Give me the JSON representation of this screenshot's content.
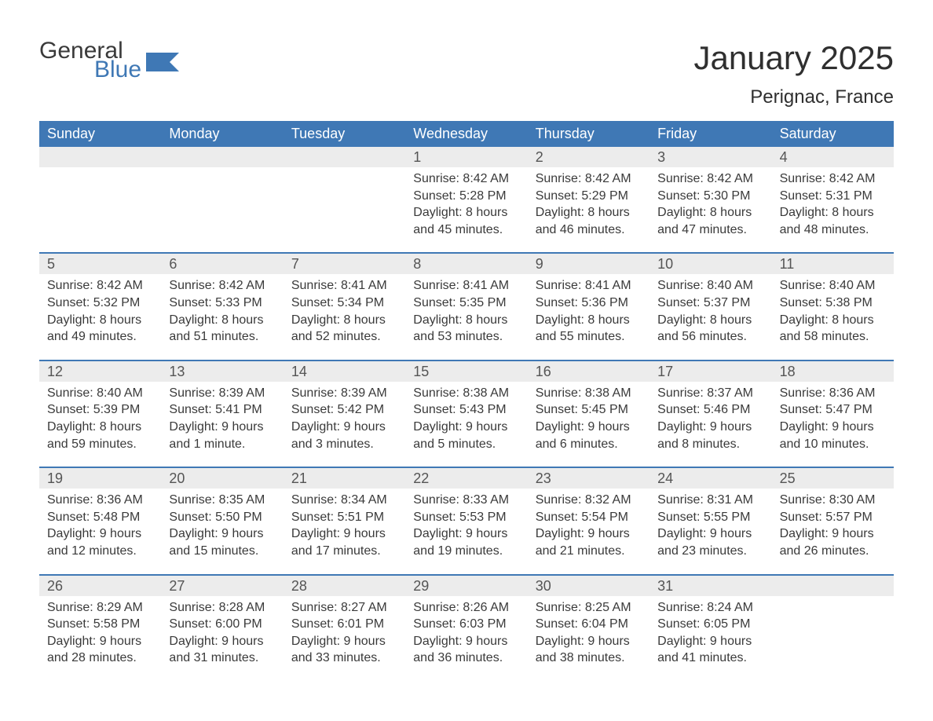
{
  "colors": {
    "brand_blue": "#3f78b5",
    "text_dark": "#3a3a3a",
    "header_bg": "#3f78b5",
    "header_text": "#ffffff",
    "daynum_bg": "#ececec",
    "page_bg": "#ffffff",
    "week_border": "#3f78b5"
  },
  "typography": {
    "month_title_fontsize": 42,
    "location_fontsize": 24,
    "weekday_fontsize": 18,
    "daynum_fontsize": 18,
    "cell_fontsize": 16,
    "logo_fontsize": 30
  },
  "logo": {
    "word1": "General",
    "word2": "Blue"
  },
  "header": {
    "month_title": "January 2025",
    "location": "Perignac, France"
  },
  "weekdays": [
    "Sunday",
    "Monday",
    "Tuesday",
    "Wednesday",
    "Thursday",
    "Friday",
    "Saturday"
  ],
  "weeks": [
    {
      "days": [
        {
          "n": "",
          "sunrise": "",
          "sunset": "",
          "daylight1": "",
          "daylight2": ""
        },
        {
          "n": "",
          "sunrise": "",
          "sunset": "",
          "daylight1": "",
          "daylight2": ""
        },
        {
          "n": "",
          "sunrise": "",
          "sunset": "",
          "daylight1": "",
          "daylight2": ""
        },
        {
          "n": "1",
          "sunrise": "Sunrise: 8:42 AM",
          "sunset": "Sunset: 5:28 PM",
          "daylight1": "Daylight: 8 hours",
          "daylight2": "and 45 minutes."
        },
        {
          "n": "2",
          "sunrise": "Sunrise: 8:42 AM",
          "sunset": "Sunset: 5:29 PM",
          "daylight1": "Daylight: 8 hours",
          "daylight2": "and 46 minutes."
        },
        {
          "n": "3",
          "sunrise": "Sunrise: 8:42 AM",
          "sunset": "Sunset: 5:30 PM",
          "daylight1": "Daylight: 8 hours",
          "daylight2": "and 47 minutes."
        },
        {
          "n": "4",
          "sunrise": "Sunrise: 8:42 AM",
          "sunset": "Sunset: 5:31 PM",
          "daylight1": "Daylight: 8 hours",
          "daylight2": "and 48 minutes."
        }
      ]
    },
    {
      "days": [
        {
          "n": "5",
          "sunrise": "Sunrise: 8:42 AM",
          "sunset": "Sunset: 5:32 PM",
          "daylight1": "Daylight: 8 hours",
          "daylight2": "and 49 minutes."
        },
        {
          "n": "6",
          "sunrise": "Sunrise: 8:42 AM",
          "sunset": "Sunset: 5:33 PM",
          "daylight1": "Daylight: 8 hours",
          "daylight2": "and 51 minutes."
        },
        {
          "n": "7",
          "sunrise": "Sunrise: 8:41 AM",
          "sunset": "Sunset: 5:34 PM",
          "daylight1": "Daylight: 8 hours",
          "daylight2": "and 52 minutes."
        },
        {
          "n": "8",
          "sunrise": "Sunrise: 8:41 AM",
          "sunset": "Sunset: 5:35 PM",
          "daylight1": "Daylight: 8 hours",
          "daylight2": "and 53 minutes."
        },
        {
          "n": "9",
          "sunrise": "Sunrise: 8:41 AM",
          "sunset": "Sunset: 5:36 PM",
          "daylight1": "Daylight: 8 hours",
          "daylight2": "and 55 minutes."
        },
        {
          "n": "10",
          "sunrise": "Sunrise: 8:40 AM",
          "sunset": "Sunset: 5:37 PM",
          "daylight1": "Daylight: 8 hours",
          "daylight2": "and 56 minutes."
        },
        {
          "n": "11",
          "sunrise": "Sunrise: 8:40 AM",
          "sunset": "Sunset: 5:38 PM",
          "daylight1": "Daylight: 8 hours",
          "daylight2": "and 58 minutes."
        }
      ]
    },
    {
      "days": [
        {
          "n": "12",
          "sunrise": "Sunrise: 8:40 AM",
          "sunset": "Sunset: 5:39 PM",
          "daylight1": "Daylight: 8 hours",
          "daylight2": "and 59 minutes."
        },
        {
          "n": "13",
          "sunrise": "Sunrise: 8:39 AM",
          "sunset": "Sunset: 5:41 PM",
          "daylight1": "Daylight: 9 hours",
          "daylight2": "and 1 minute."
        },
        {
          "n": "14",
          "sunrise": "Sunrise: 8:39 AM",
          "sunset": "Sunset: 5:42 PM",
          "daylight1": "Daylight: 9 hours",
          "daylight2": "and 3 minutes."
        },
        {
          "n": "15",
          "sunrise": "Sunrise: 8:38 AM",
          "sunset": "Sunset: 5:43 PM",
          "daylight1": "Daylight: 9 hours",
          "daylight2": "and 5 minutes."
        },
        {
          "n": "16",
          "sunrise": "Sunrise: 8:38 AM",
          "sunset": "Sunset: 5:45 PM",
          "daylight1": "Daylight: 9 hours",
          "daylight2": "and 6 minutes."
        },
        {
          "n": "17",
          "sunrise": "Sunrise: 8:37 AM",
          "sunset": "Sunset: 5:46 PM",
          "daylight1": "Daylight: 9 hours",
          "daylight2": "and 8 minutes."
        },
        {
          "n": "18",
          "sunrise": "Sunrise: 8:36 AM",
          "sunset": "Sunset: 5:47 PM",
          "daylight1": "Daylight: 9 hours",
          "daylight2": "and 10 minutes."
        }
      ]
    },
    {
      "days": [
        {
          "n": "19",
          "sunrise": "Sunrise: 8:36 AM",
          "sunset": "Sunset: 5:48 PM",
          "daylight1": "Daylight: 9 hours",
          "daylight2": "and 12 minutes."
        },
        {
          "n": "20",
          "sunrise": "Sunrise: 8:35 AM",
          "sunset": "Sunset: 5:50 PM",
          "daylight1": "Daylight: 9 hours",
          "daylight2": "and 15 minutes."
        },
        {
          "n": "21",
          "sunrise": "Sunrise: 8:34 AM",
          "sunset": "Sunset: 5:51 PM",
          "daylight1": "Daylight: 9 hours",
          "daylight2": "and 17 minutes."
        },
        {
          "n": "22",
          "sunrise": "Sunrise: 8:33 AM",
          "sunset": "Sunset: 5:53 PM",
          "daylight1": "Daylight: 9 hours",
          "daylight2": "and 19 minutes."
        },
        {
          "n": "23",
          "sunrise": "Sunrise: 8:32 AM",
          "sunset": "Sunset: 5:54 PM",
          "daylight1": "Daylight: 9 hours",
          "daylight2": "and 21 minutes."
        },
        {
          "n": "24",
          "sunrise": "Sunrise: 8:31 AM",
          "sunset": "Sunset: 5:55 PM",
          "daylight1": "Daylight: 9 hours",
          "daylight2": "and 23 minutes."
        },
        {
          "n": "25",
          "sunrise": "Sunrise: 8:30 AM",
          "sunset": "Sunset: 5:57 PM",
          "daylight1": "Daylight: 9 hours",
          "daylight2": "and 26 minutes."
        }
      ]
    },
    {
      "days": [
        {
          "n": "26",
          "sunrise": "Sunrise: 8:29 AM",
          "sunset": "Sunset: 5:58 PM",
          "daylight1": "Daylight: 9 hours",
          "daylight2": "and 28 minutes."
        },
        {
          "n": "27",
          "sunrise": "Sunrise: 8:28 AM",
          "sunset": "Sunset: 6:00 PM",
          "daylight1": "Daylight: 9 hours",
          "daylight2": "and 31 minutes."
        },
        {
          "n": "28",
          "sunrise": "Sunrise: 8:27 AM",
          "sunset": "Sunset: 6:01 PM",
          "daylight1": "Daylight: 9 hours",
          "daylight2": "and 33 minutes."
        },
        {
          "n": "29",
          "sunrise": "Sunrise: 8:26 AM",
          "sunset": "Sunset: 6:03 PM",
          "daylight1": "Daylight: 9 hours",
          "daylight2": "and 36 minutes."
        },
        {
          "n": "30",
          "sunrise": "Sunrise: 8:25 AM",
          "sunset": "Sunset: 6:04 PM",
          "daylight1": "Daylight: 9 hours",
          "daylight2": "and 38 minutes."
        },
        {
          "n": "31",
          "sunrise": "Sunrise: 8:24 AM",
          "sunset": "Sunset: 6:05 PM",
          "daylight1": "Daylight: 9 hours",
          "daylight2": "and 41 minutes."
        },
        {
          "n": "",
          "sunrise": "",
          "sunset": "",
          "daylight1": "",
          "daylight2": ""
        }
      ]
    }
  ]
}
